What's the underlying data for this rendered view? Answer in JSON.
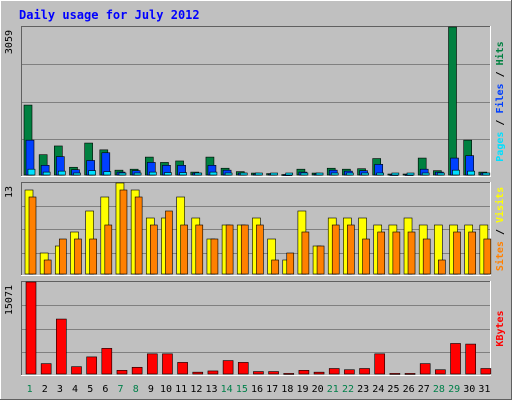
{
  "title": "Daily usage for July 2012",
  "colors": {
    "bg": "#c0c0c0",
    "title": "#0000ff",
    "grid": "#808080",
    "hits": "#008040",
    "files": "#0040ff",
    "pages": "#00e0ff",
    "visits": "#ffff00",
    "sites": "#ff8000",
    "kbytes": "#ff0000",
    "weekend_label": "#00804a",
    "weekday_label": "#000000"
  },
  "chart_data": [
    {
      "type": "bar",
      "name": "Hits / Files / Pages",
      "legend": [
        "Pages",
        "Files",
        "Hits"
      ],
      "ymax_label": "3059",
      "ymax": 3059,
      "categories": [
        "1",
        "2",
        "3",
        "4",
        "5",
        "6",
        "7",
        "8",
        "9",
        "10",
        "11",
        "12",
        "13",
        "14",
        "15",
        "16",
        "17",
        "18",
        "19",
        "20",
        "21",
        "22",
        "23",
        "24",
        "25",
        "26",
        "27",
        "28",
        "29",
        "30",
        "31"
      ],
      "series": [
        {
          "name": "Hits",
          "values": [
            1445,
            420,
            600,
            160,
            660,
            520,
            100,
            120,
            370,
            260,
            290,
            60,
            370,
            140,
            70,
            40,
            30,
            10,
            120,
            40,
            140,
            120,
            130,
            340,
            20,
            20,
            350,
            90,
            3059,
            720,
            60
          ]
        },
        {
          "name": "Files",
          "values": [
            720,
            200,
            380,
            110,
            300,
            460,
            60,
            90,
            260,
            200,
            200,
            40,
            200,
            100,
            40,
            20,
            20,
            10,
            60,
            20,
            100,
            80,
            90,
            220,
            10,
            10,
            120,
            60,
            350,
            400,
            40
          ]
        },
        {
          "name": "Pages",
          "values": [
            120,
            60,
            80,
            40,
            90,
            70,
            30,
            30,
            60,
            50,
            50,
            20,
            60,
            40,
            20,
            10,
            10,
            5,
            20,
            10,
            30,
            30,
            30,
            40,
            5,
            5,
            20,
            20,
            100,
            80,
            20
          ]
        }
      ]
    },
    {
      "type": "bar",
      "name": "Visits / Sites",
      "legend": [
        "Sites",
        "Visits"
      ],
      "ymax_label": "13",
      "ymax": 13,
      "categories": [
        "1",
        "2",
        "3",
        "4",
        "5",
        "6",
        "7",
        "8",
        "9",
        "10",
        "11",
        "12",
        "13",
        "14",
        "15",
        "16",
        "17",
        "18",
        "19",
        "20",
        "21",
        "22",
        "23",
        "24",
        "25",
        "26",
        "27",
        "28",
        "29",
        "30",
        "31"
      ],
      "series": [
        {
          "name": "Visits",
          "values": [
            12,
            3,
            4,
            6,
            9,
            11,
            13,
            12,
            8,
            8,
            11,
            8,
            5,
            7,
            7,
            8,
            5,
            2,
            9,
            4,
            8,
            8,
            8,
            7,
            7,
            8,
            7,
            7,
            7,
            7,
            7
          ]
        },
        {
          "name": "Sites",
          "values": [
            11,
            2,
            5,
            5,
            5,
            7,
            12,
            11,
            7,
            9,
            7,
            7,
            5,
            7,
            7,
            7,
            2,
            3,
            6,
            4,
            7,
            7,
            5,
            6,
            6,
            6,
            5,
            2,
            6,
            6,
            5
          ]
        }
      ]
    },
    {
      "type": "bar",
      "name": "KBytes",
      "legend": [
        "KBytes"
      ],
      "ymax_label": "15071",
      "ymax": 15071,
      "categories": [
        "1",
        "2",
        "3",
        "4",
        "5",
        "6",
        "7",
        "8",
        "9",
        "10",
        "11",
        "12",
        "13",
        "14",
        "15",
        "16",
        "17",
        "18",
        "19",
        "20",
        "21",
        "22",
        "23",
        "24",
        "25",
        "26",
        "27",
        "28",
        "29",
        "30",
        "31"
      ],
      "series": [
        {
          "name": "KBytes",
          "values": [
            15071,
            1700,
            9000,
            1200,
            2800,
            4200,
            600,
            1100,
            3300,
            3300,
            1900,
            300,
            500,
            2200,
            1900,
            400,
            400,
            100,
            600,
            300,
            900,
            700,
            900,
            3300,
            100,
            100,
            1700,
            700,
            5000,
            4900,
            900
          ]
        }
      ]
    }
  ],
  "weekend_days": [
    1,
    7,
    8,
    14,
    15,
    21,
    22,
    28,
    29
  ]
}
